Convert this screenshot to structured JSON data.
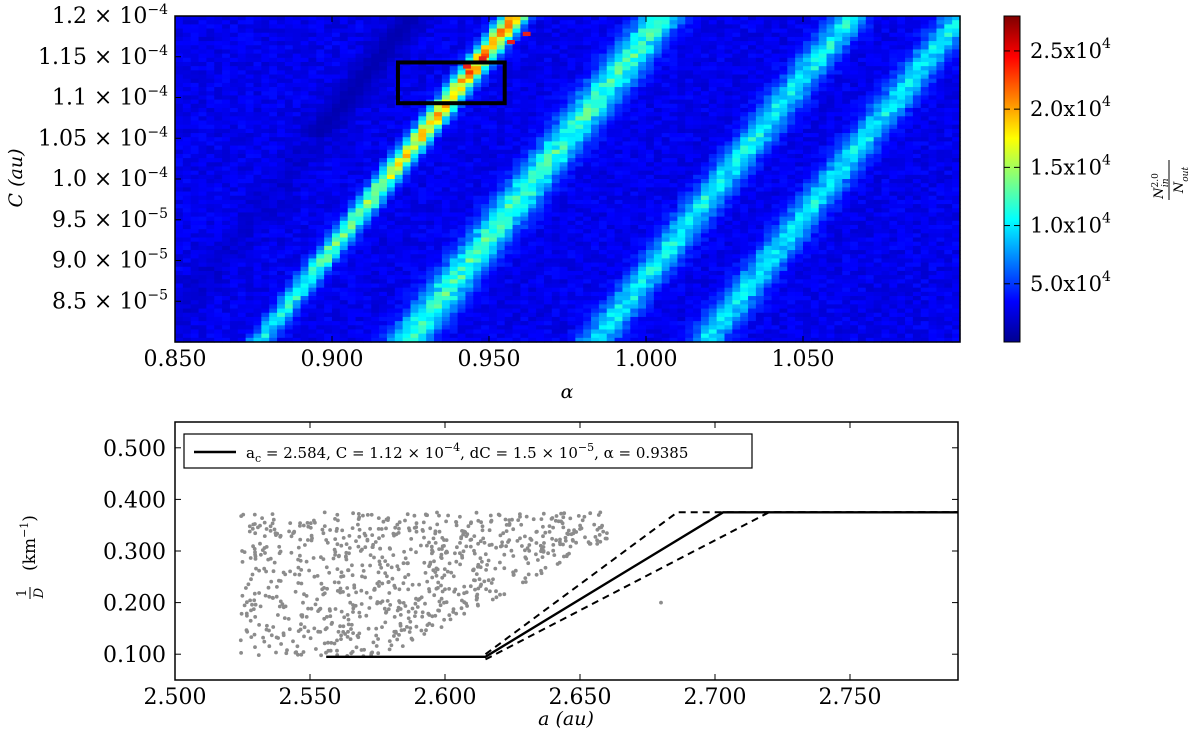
{
  "chart_data": [
    {
      "type": "heatmap",
      "xlabel": "α",
      "ylabel": "C (au)",
      "xlim": [
        0.85,
        1.1
      ],
      "ylim": [
        8e-05,
        0.00012
      ],
      "x_ticks": [
        0.85,
        0.9,
        0.95,
        1.0,
        1.05
      ],
      "x_tick_labels": [
        "0.850",
        "0.900",
        "0.950",
        "1.000",
        "1.050"
      ],
      "y_ticks": [
        8.5e-05,
        9e-05,
        9.5e-05,
        0.0001,
        0.000105,
        0.00011,
        0.000115,
        0.00012
      ],
      "y_tick_mantissas": [
        "8.5",
        "9.0",
        "9.5",
        "1.0",
        "1.05",
        "1.1",
        "1.15",
        "1.2"
      ],
      "y_tick_exponents": [
        "-5",
        "-5",
        "-5",
        "-4",
        "-4",
        "-4",
        "-4",
        "-4"
      ],
      "colormap": "jet",
      "colorbar": {
        "label": "N_in^2.0 / N_out",
        "min": 0,
        "max": 28000,
        "ticks": [
          5000,
          10000,
          15000,
          20000,
          25000
        ],
        "tick_labels": [
          "5.0x10",
          "1.0x10",
          "1.5x10",
          "2.0x10",
          "2.5x10"
        ],
        "tick_exponent": "4"
      },
      "background_level": 3000,
      "ridges": [
        {
          "alpha_at_C_1.1e-4": 0.938,
          "slope_C_per_alpha": 0.00049,
          "halfwidth_alpha": 0.004,
          "peak_level": 19000
        },
        {
          "alpha_at_C_1.1e-4": 0.985,
          "slope_C_per_alpha": 0.00049,
          "halfwidth_alpha": 0.007,
          "peak_level": 9000
        },
        {
          "alpha_at_C_1.1e-4": 1.045,
          "slope_C_per_alpha": 0.00049,
          "halfwidth_alpha": 0.006,
          "peak_level": 7500
        },
        {
          "alpha_at_C_1.1e-4": 1.08,
          "slope_C_per_alpha": 0.00049,
          "halfwidth_alpha": 0.006,
          "peak_level": 7000
        }
      ],
      "dark_band": {
        "alpha_at_C_1.1e-4": 0.905,
        "slope_C_per_alpha": 0.00049,
        "halfwidth_alpha": 0.006,
        "level": 1200
      },
      "hot_cells": [
        {
          "alpha": 0.962,
          "C": 0.0001178
        },
        {
          "alpha": 0.957,
          "C": 0.0001168
        },
        {
          "alpha": 0.948,
          "C": 0.0001148
        },
        {
          "alpha": 0.943,
          "C": 0.0001138
        }
      ],
      "highlight_box": {
        "alpha_range": [
          0.921,
          0.955
        ],
        "C_range": [
          0.0001093,
          0.0001143
        ]
      }
    },
    {
      "type": "scatter",
      "xlabel": "a (au)",
      "ylabel": "1/D (km⁻¹)",
      "xlim": [
        2.5,
        2.79
      ],
      "ylim": [
        0.05,
        0.55
      ],
      "x_ticks": [
        2.5,
        2.55,
        2.6,
        2.65,
        2.7,
        2.75
      ],
      "x_tick_labels": [
        "2.500",
        "2.550",
        "2.600",
        "2.650",
        "2.700",
        "2.750"
      ],
      "y_ticks": [
        0.1,
        0.2,
        0.3,
        0.4,
        0.5
      ],
      "y_tick_labels": [
        "0.100",
        "0.200",
        "0.300",
        "0.400",
        "0.500"
      ],
      "legend": {
        "position": "upper-left",
        "series_name": "a_c = 2.584, C = 1.12 × 10^-4, dC = 1.5 × 10^-5, α = 0.9385",
        "parts": {
          "ac_label": "a",
          "ac_sub": "c",
          "ac_text": " = 2.584,  C = 1.12 × 10",
          "C_exp": "−4",
          "dC_text": ",  dC = 1.5 × 10",
          "dC_exp": "−5",
          "alpha_text": ",  α  =  0.9385"
        }
      },
      "points": {
        "count": 820,
        "a_range": [
          2.524,
          2.66
        ],
        "inv_D_range": [
          0.095,
          0.375
        ],
        "color": "#8c8c8c",
        "note_outliers": [
          {
            "a": 2.68,
            "inv_D": 0.2
          }
        ]
      },
      "lines": [
        {
          "name": "boundary",
          "style": "solid",
          "x": [
            2.556,
            2.615,
            2.703,
            2.79
          ],
          "y": [
            0.095,
            0.095,
            0.375,
            0.375
          ]
        },
        {
          "name": "boundary-upper",
          "style": "dashed",
          "x": [
            2.615,
            2.686,
            2.79
          ],
          "y": [
            0.1,
            0.375,
            0.375
          ]
        },
        {
          "name": "boundary-lower",
          "style": "dashed",
          "x": [
            2.615,
            2.72,
            2.79
          ],
          "y": [
            0.09,
            0.375,
            0.375
          ]
        }
      ]
    }
  ]
}
